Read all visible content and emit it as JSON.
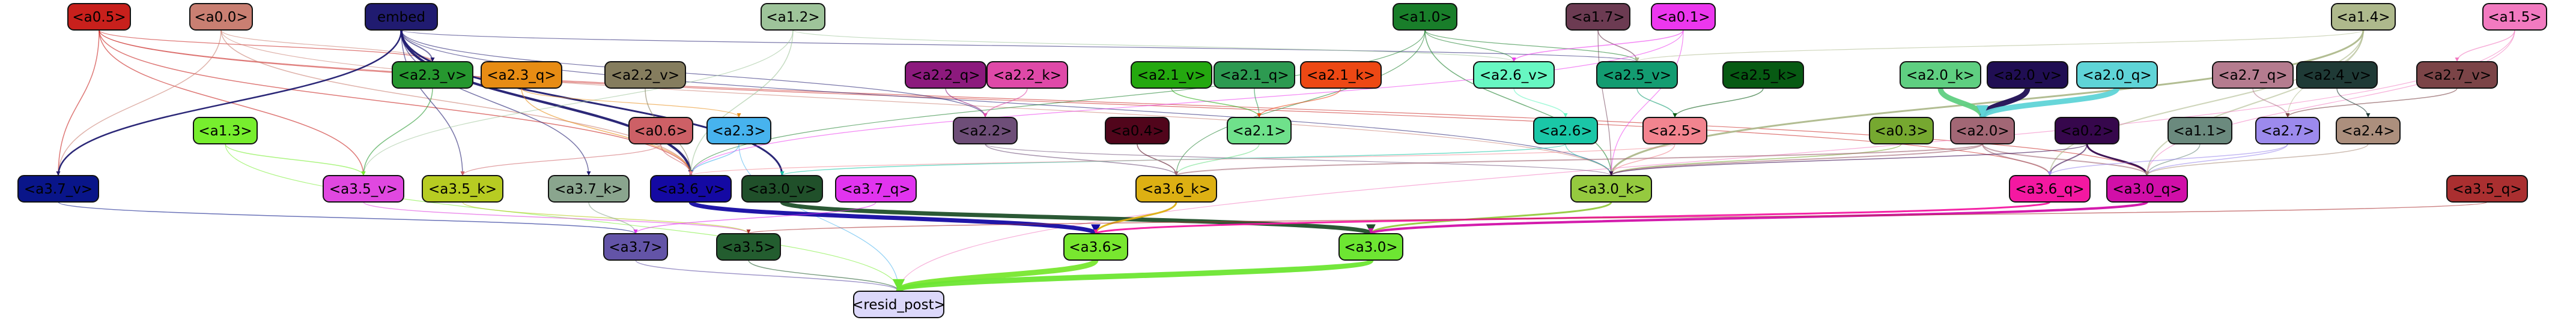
{
  "nodes": [
    {
      "id": "a0.5",
      "label": "<a0.5>",
      "fill": "#c8201c",
      "text": "#000000"
    },
    {
      "id": "a0.0",
      "label": "<a0.0>",
      "fill": "#c97f72",
      "text": "#000000"
    },
    {
      "id": "embed",
      "label": "embed",
      "fill": "#201b70",
      "text": "#000000"
    },
    {
      "id": "a1.2",
      "label": "<a1.2>",
      "fill": "#9ec49a",
      "text": "#000000"
    },
    {
      "id": "a1.0",
      "label": "<a1.0>",
      "fill": "#197e2a",
      "text": "#000000"
    },
    {
      "id": "a1.7",
      "label": "<a1.7>",
      "fill": "#6c3b52",
      "text": "#000000"
    },
    {
      "id": "a0.1",
      "label": "<a0.1>",
      "fill": "#ec37ee",
      "text": "#000000"
    },
    {
      "id": "a1.4",
      "label": "<a1.4>",
      "fill": "#aeb98c",
      "text": "#000000"
    },
    {
      "id": "a1.5",
      "label": "<a1.5>",
      "fill": "#f27ac0",
      "text": "#000000"
    },
    {
      "id": "a2.3_v",
      "label": "<a2.3_v>",
      "fill": "#26972f",
      "text": "#000000"
    },
    {
      "id": "a2.3_q",
      "label": "<a2.3_q>",
      "fill": "#e78c14",
      "text": "#000000"
    },
    {
      "id": "a2.2_v",
      "label": "<a2.2_v>",
      "fill": "#857d5e",
      "text": "#000000"
    },
    {
      "id": "a2.2_q",
      "label": "<a2.2_q>",
      "fill": "#8c1a7d",
      "text": "#000000"
    },
    {
      "id": "a2.2_k",
      "label": "<a2.2_k>",
      "fill": "#df49a8",
      "text": "#000000"
    },
    {
      "id": "a2.1_v",
      "label": "<a2.1_v>",
      "fill": "#24a80f",
      "text": "#000000"
    },
    {
      "id": "a2.1_q",
      "label": "<a2.1_q>",
      "fill": "#2d9a51",
      "text": "#000000"
    },
    {
      "id": "a2.1_k",
      "label": "<a2.1_k>",
      "fill": "#ed4814",
      "text": "#000000"
    },
    {
      "id": "a2.6_v",
      "label": "<a2.6_v>",
      "fill": "#67f7c2",
      "text": "#000000"
    },
    {
      "id": "a2.5_v",
      "label": "<a2.5_v>",
      "fill": "#139c71",
      "text": "#000000"
    },
    {
      "id": "a2.5_k",
      "label": "<a2.5_k>",
      "fill": "#075a13",
      "text": "#000000"
    },
    {
      "id": "a2.0_k",
      "label": "<a2.0_k>",
      "fill": "#5fcf81",
      "text": "#000000"
    },
    {
      "id": "a2.0_v",
      "label": "<a2.0_v>",
      "fill": "#200e53",
      "text": "#000000"
    },
    {
      "id": "a2.0_q",
      "label": "<a2.0_q>",
      "fill": "#5fd4d7",
      "text": "#000000"
    },
    {
      "id": "a2.7_q",
      "label": "<a2.7_q>",
      "fill": "#b57c8f",
      "text": "#000000"
    },
    {
      "id": "a2.4_v",
      "label": "<a2.4_v>",
      "fill": "#1f3a36",
      "text": "#000000"
    },
    {
      "id": "a2.7_v",
      "label": "<a2.7_v>",
      "fill": "#7b4447",
      "text": "#000000"
    },
    {
      "id": "a1.3",
      "label": "<a1.3>",
      "fill": "#77ee2e",
      "text": "#000000"
    },
    {
      "id": "a0.6",
      "label": "<a0.6>",
      "fill": "#cd6066",
      "text": "#000000"
    },
    {
      "id": "a2.3",
      "label": "<a2.3>",
      "fill": "#47b3ee",
      "text": "#000000"
    },
    {
      "id": "a2.2",
      "label": "<a2.2>",
      "fill": "#6e4e78",
      "text": "#000000"
    },
    {
      "id": "a0.4",
      "label": "<a0.4>",
      "fill": "#51051b",
      "text": "#000000"
    },
    {
      "id": "a2.1",
      "label": "<a2.1>",
      "fill": "#6fe18b",
      "text": "#000000"
    },
    {
      "id": "a2.6",
      "label": "<a2.6>",
      "fill": "#1ac7a7",
      "text": "#000000"
    },
    {
      "id": "a2.5",
      "label": "<a2.5>",
      "fill": "#f2848f",
      "text": "#000000"
    },
    {
      "id": "a0.3",
      "label": "<a0.3>",
      "fill": "#76a830",
      "text": "#000000"
    },
    {
      "id": "a2.0",
      "label": "<a2.0>",
      "fill": "#a26775",
      "text": "#000000"
    },
    {
      "id": "a0.2",
      "label": "<a0.2>",
      "fill": "#36074c",
      "text": "#000000"
    },
    {
      "id": "a1.1",
      "label": "<a1.1>",
      "fill": "#6b8a7e",
      "text": "#000000"
    },
    {
      "id": "a2.7",
      "label": "<a2.7>",
      "fill": "#9c8aed",
      "text": "#000000"
    },
    {
      "id": "a2.4",
      "label": "<a2.4>",
      "fill": "#ac8f7d",
      "text": "#000000"
    },
    {
      "id": "a3.7_v",
      "label": "<a3.7_v>",
      "fill": "#091589",
      "text": "#000000"
    },
    {
      "id": "a3.5_v",
      "label": "<a3.5_v>",
      "fill": "#e048e0",
      "text": "#000000"
    },
    {
      "id": "a3.5_k",
      "label": "<a3.5_k>",
      "fill": "#b7cc22",
      "text": "#000000"
    },
    {
      "id": "a3.7_k",
      "label": "<a3.7_k>",
      "fill": "#8aa58e",
      "text": "#000000"
    },
    {
      "id": "a3.6_v",
      "label": "<a3.6_v>",
      "fill": "#1409a3",
      "text": "#000000"
    },
    {
      "id": "a3.0_v",
      "label": "<a3.0_v>",
      "fill": "#20502a",
      "text": "#000000"
    },
    {
      "id": "a3.7_q",
      "label": "<a3.7_q>",
      "fill": "#e134ef",
      "text": "#000000"
    },
    {
      "id": "a3.6_k",
      "label": "<a3.6_k>",
      "fill": "#ddb013",
      "text": "#000000"
    },
    {
      "id": "a3.0_k",
      "label": "<a3.0_k>",
      "fill": "#95ca3f",
      "text": "#000000"
    },
    {
      "id": "a3.6_q",
      "label": "<a3.6_q>",
      "fill": "#f418a1",
      "text": "#000000"
    },
    {
      "id": "a3.0_q",
      "label": "<a3.0_q>",
      "fill": "#d10fa8",
      "text": "#000000"
    },
    {
      "id": "a3.5_q",
      "label": "<a3.5_q>",
      "fill": "#aa2f30",
      "text": "#000000"
    },
    {
      "id": "a3.7",
      "label": "<a3.7>",
      "fill": "#6354a7",
      "text": "#000000"
    },
    {
      "id": "a3.5",
      "label": "<a3.5>",
      "fill": "#235d2f",
      "text": "#000000"
    },
    {
      "id": "a3.6",
      "label": "<a3.6>",
      "fill": "#78e72f",
      "text": "#000000"
    },
    {
      "id": "a3.0",
      "label": "<a3.0>",
      "fill": "#6de632",
      "text": "#000000"
    },
    {
      "id": "resid_post",
      "label": "<resid_post>",
      "fill": "#dcd8fa",
      "text": "#000000"
    }
  ],
  "edges": [
    {
      "from": "a0.5",
      "to": "a3.7_v",
      "color": "#c8201c",
      "width": 1.5
    },
    {
      "from": "a0.5",
      "to": "a3.5_v",
      "color": "#c8201c",
      "width": 1.5
    },
    {
      "from": "a0.5",
      "to": "a3.6_v",
      "color": "#c8201c",
      "width": 1.5
    },
    {
      "from": "a0.5",
      "to": "a2.3_v",
      "color": "#c8201c",
      "width": 1.2
    },
    {
      "from": "a0.5",
      "to": "a3.6_q",
      "color": "#c8201c",
      "width": 1.2
    },
    {
      "from": "a0.5",
      "to": "a3.0_q",
      "color": "#c8201c",
      "width": 1.2
    },
    {
      "from": "a0.0",
      "to": "a3.7_v",
      "color": "#c97f72",
      "width": 1.5
    },
    {
      "from": "a0.0",
      "to": "a3.6_v",
      "color": "#c97f72",
      "width": 1.5
    },
    {
      "from": "a0.0",
      "to": "a2.3_v",
      "color": "#c97f72",
      "width": 1.2
    },
    {
      "from": "a0.0",
      "to": "a3.0_k",
      "color": "#c97f72",
      "width": 1.2
    },
    {
      "from": "embed",
      "to": "a3.7_v",
      "color": "#201b70",
      "width": 2.5
    },
    {
      "from": "embed",
      "to": "a3.6_v",
      "color": "#201b70",
      "width": 4
    },
    {
      "from": "embed",
      "to": "a3.0_v",
      "color": "#201b70",
      "width": 3
    },
    {
      "from": "embed",
      "to": "a2.3_v",
      "color": "#201b70",
      "width": 2
    },
    {
      "from": "embed",
      "to": "a3.5_k",
      "color": "#201b70",
      "width": 1.5
    },
    {
      "from": "embed",
      "to": "a3.7_k",
      "color": "#201b70",
      "width": 1.5
    },
    {
      "from": "embed",
      "to": "a2.2",
      "color": "#201b70",
      "width": 1.2
    },
    {
      "from": "embed",
      "to": "a2.5_v",
      "color": "#201b70",
      "width": 1.2
    },
    {
      "from": "embed",
      "to": "a3.0_k",
      "color": "#201b70",
      "width": 1.2
    },
    {
      "from": "a1.2",
      "to": "a3.6_v",
      "color": "#9ec49a",
      "width": 1.5
    },
    {
      "from": "a1.2",
      "to": "a3.5_v",
      "color": "#9ec49a",
      "width": 1.2
    },
    {
      "from": "a1.2",
      "to": "a2.6_v",
      "color": "#9ec49a",
      "width": 1.2
    },
    {
      "from": "a1.0",
      "to": "a3.0_k",
      "color": "#197e2a",
      "width": 1.5
    },
    {
      "from": "a1.0",
      "to": "a3.6_v",
      "color": "#197e2a",
      "width": 1.2
    },
    {
      "from": "a1.0",
      "to": "a2.6_v",
      "color": "#197e2a",
      "width": 1.2
    },
    {
      "from": "a1.0",
      "to": "a2.5_v",
      "color": "#197e2a",
      "width": 1.2
    },
    {
      "from": "a1.0",
      "to": "a3.6_k",
      "color": "#197e2a",
      "width": 1.2
    },
    {
      "from": "a1.7",
      "to": "a2.5_v",
      "color": "#6c3b52",
      "width": 1.5
    },
    {
      "from": "a1.7",
      "to": "a3.0_k",
      "color": "#6c3b52",
      "width": 1.2
    },
    {
      "from": "a0.1",
      "to": "a2.6_v",
      "color": "#ec37ee",
      "width": 1.5
    },
    {
      "from": "a0.1",
      "to": "a3.6_v",
      "color": "#ec37ee",
      "width": 1.2
    },
    {
      "from": "a0.1",
      "to": "a3.0_k",
      "color": "#ec37ee",
      "width": 1.2
    },
    {
      "from": "a1.4",
      "to": "a3.0_k",
      "color": "#aeb98c",
      "width": 3
    },
    {
      "from": "a1.4",
      "to": "a3.6_q",
      "color": "#aeb98c",
      "width": 2
    },
    {
      "from": "a1.4",
      "to": "a3.0_q",
      "color": "#aeb98c",
      "width": 2
    },
    {
      "from": "a1.4",
      "to": "a2.5_v",
      "color": "#aeb98c",
      "width": 1.2
    },
    {
      "from": "a1.4",
      "to": "a2.7",
      "color": "#aeb98c",
      "width": 1.2
    },
    {
      "from": "a1.5",
      "to": "a2.7_v",
      "color": "#f27ac0",
      "width": 1.5
    },
    {
      "from": "a1.5",
      "to": "a3.0_q",
      "color": "#f27ac0",
      "width": 1.2
    },
    {
      "from": "a1.5",
      "to": "resid_post",
      "color": "#f27ac0",
      "width": 1.2
    },
    {
      "from": "a2.3_v",
      "to": "a3.5_v",
      "color": "#26972f",
      "width": 1.5
    },
    {
      "from": "a2.3_q",
      "to": "a3.6_v",
      "color": "#e78c14",
      "width": 1.5
    },
    {
      "from": "a2.3_q",
      "to": "a2.3",
      "color": "#e78c14",
      "width": 1.2
    },
    {
      "from": "a2.2_v",
      "to": "a3.6_v",
      "color": "#857d5e",
      "width": 1.5
    },
    {
      "from": "a2.2_q",
      "to": "a2.2",
      "color": "#8c1a7d",
      "width": 1.5
    },
    {
      "from": "a2.2_k",
      "to": "a2.2",
      "color": "#df49a8",
      "width": 1.5
    },
    {
      "from": "a2.1_v",
      "to": "a2.1",
      "color": "#24a80f",
      "width": 1.5
    },
    {
      "from": "a2.1_q",
      "to": "a2.1",
      "color": "#2d9a51",
      "width": 1.5
    },
    {
      "from": "a2.1_k",
      "to": "a2.1",
      "color": "#ed4814",
      "width": 1.5
    },
    {
      "from": "a2.6_v",
      "to": "a2.6",
      "color": "#67f7c2",
      "width": 1.5
    },
    {
      "from": "a2.5_v",
      "to": "a2.5",
      "color": "#139c71",
      "width": 1.5
    },
    {
      "from": "a2.5_k",
      "to": "a2.5",
      "color": "#075a13",
      "width": 1.5
    },
    {
      "from": "a2.0_k",
      "to": "a2.0",
      "color": "#5fcf81",
      "width": 9
    },
    {
      "from": "a2.0_v",
      "to": "a2.0",
      "color": "#200e53",
      "width": 9
    },
    {
      "from": "a2.0_q",
      "to": "a2.0",
      "color": "#5fd4d7",
      "width": 9
    },
    {
      "from": "a2.7_q",
      "to": "a2.7",
      "color": "#b57c8f",
      "width": 1.5
    },
    {
      "from": "a2.4_v",
      "to": "a2.4",
      "color": "#1f3a36",
      "width": 1.5
    },
    {
      "from": "a2.7_v",
      "to": "a2.7",
      "color": "#7b4447",
      "width": 1.5
    },
    {
      "from": "a1.3",
      "to": "a3.5_v",
      "color": "#77ee2e",
      "width": 1.5
    },
    {
      "from": "a1.3",
      "to": "resid_post",
      "color": "#77ee2e",
      "width": 1.2
    },
    {
      "from": "a0.6",
      "to": "a3.6_v",
      "color": "#cd6066",
      "width": 1.5
    },
    {
      "from": "a0.6",
      "to": "a3.5_k",
      "color": "#cd6066",
      "width": 1.2
    },
    {
      "from": "a2.3",
      "to": "a3.6_v",
      "color": "#47b3ee",
      "width": 1.5
    },
    {
      "from": "a2.3",
      "to": "resid_post",
      "color": "#47b3ee",
      "width": 1.2
    },
    {
      "from": "a2.2",
      "to": "a3.6_k",
      "color": "#6e4e78",
      "width": 1.5
    },
    {
      "from": "a2.2",
      "to": "a3.0_k",
      "color": "#6e4e78",
      "width": 1.2
    },
    {
      "from": "a0.4",
      "to": "a3.6_k",
      "color": "#51051b",
      "width": 1.5
    },
    {
      "from": "a2.1",
      "to": "a3.6_k",
      "color": "#6fe18b",
      "width": 1.5
    },
    {
      "from": "a2.6",
      "to": "a3.0_v",
      "color": "#1ac7a7",
      "width": 1.5
    },
    {
      "from": "a2.6",
      "to": "a3.0_k",
      "color": "#1ac7a7",
      "width": 1.2
    },
    {
      "from": "a2.5",
      "to": "a3.0_k",
      "color": "#f2848f",
      "width": 1.5
    },
    {
      "from": "a2.5",
      "to": "a3.6_v",
      "color": "#f2848f",
      "width": 1.2
    },
    {
      "from": "a0.3",
      "to": "a3.0_k",
      "color": "#76a830",
      "width": 1.5
    },
    {
      "from": "a2.0",
      "to": "a3.6_k",
      "color": "#a26775",
      "width": 2
    },
    {
      "from": "a2.0",
      "to": "a3.0_k",
      "color": "#a26775",
      "width": 2
    },
    {
      "from": "a2.0",
      "to": "a3.6_q",
      "color": "#a26775",
      "width": 2
    },
    {
      "from": "a2.0",
      "to": "a3.0_q",
      "color": "#a26775",
      "width": 2
    },
    {
      "from": "a0.2",
      "to": "a3.0_q",
      "color": "#36074c",
      "width": 3
    },
    {
      "from": "a0.2",
      "to": "a3.6_q",
      "color": "#36074c",
      "width": 2
    },
    {
      "from": "a0.2",
      "to": "a3.0_k",
      "color": "#36074c",
      "width": 1.5
    },
    {
      "from": "a1.1",
      "to": "a3.0_q",
      "color": "#6b8a7e",
      "width": 1.5
    },
    {
      "from": "a2.7",
      "to": "a3.6_q",
      "color": "#9c8aed",
      "width": 1.5
    },
    {
      "from": "a2.7",
      "to": "a3.0_q",
      "color": "#9c8aed",
      "width": 1.5
    },
    {
      "from": "a2.4",
      "to": "a3.0_q",
      "color": "#ac8f7d",
      "width": 1.5
    },
    {
      "from": "a3.7_v",
      "to": "a3.7",
      "color": "#091589",
      "width": 1.5
    },
    {
      "from": "a3.5_v",
      "to": "a3.5",
      "color": "#e048e0",
      "width": 1.5
    },
    {
      "from": "a3.5_k",
      "to": "a3.5",
      "color": "#b7cc22",
      "width": 1.5
    },
    {
      "from": "a3.7_k",
      "to": "a3.7",
      "color": "#8aa58e",
      "width": 1.5
    },
    {
      "from": "a3.6_v",
      "to": "a3.6",
      "color": "#1409a3",
      "width": 7
    },
    {
      "from": "a3.0_v",
      "to": "a3.0",
      "color": "#20502a",
      "width": 7
    },
    {
      "from": "a3.7_q",
      "to": "a3.7",
      "color": "#e134ef",
      "width": 1.5
    },
    {
      "from": "a3.6_k",
      "to": "a3.6",
      "color": "#ddb013",
      "width": 3
    },
    {
      "from": "a3.0_k",
      "to": "a3.0",
      "color": "#95ca3f",
      "width": 3
    },
    {
      "from": "a3.6_q",
      "to": "a3.6",
      "color": "#f418a1",
      "width": 3
    },
    {
      "from": "a3.0_q",
      "to": "a3.0",
      "color": "#d10fa8",
      "width": 4
    },
    {
      "from": "a3.5_q",
      "to": "a3.5",
      "color": "#aa2f30",
      "width": 1.5
    },
    {
      "from": "a3.7",
      "to": "resid_post",
      "color": "#6354a7",
      "width": 1.5
    },
    {
      "from": "a3.5",
      "to": "resid_post",
      "color": "#235d2f",
      "width": 1.5
    },
    {
      "from": "a3.6",
      "to": "resid_post",
      "color": "#78e72f",
      "width": 9
    },
    {
      "from": "a3.0",
      "to": "resid_post",
      "color": "#6de632",
      "width": 9
    }
  ]
}
